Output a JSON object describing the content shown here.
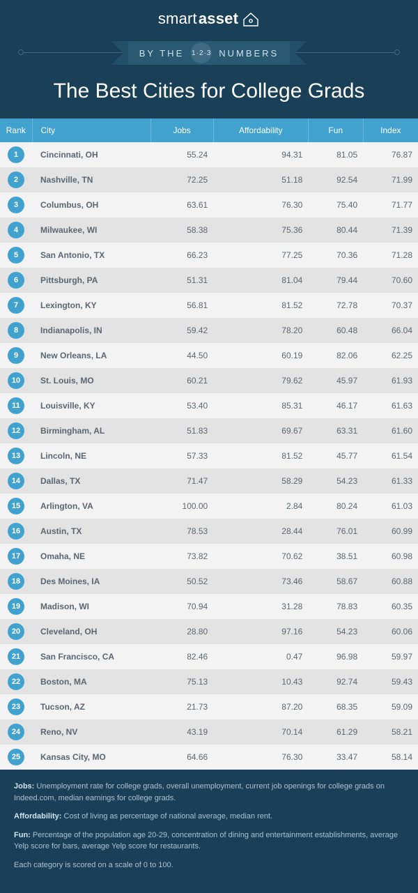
{
  "brand": {
    "part1": "smart",
    "part2": "asset"
  },
  "ribbon": {
    "left": "BY THE",
    "right": "NUMBERS",
    "badge": "1·2·3"
  },
  "title": "The Best Cities for College Grads",
  "columns": {
    "rank": "Rank",
    "city": "City",
    "jobs": "Jobs",
    "affordability": "Affordability",
    "fun": "Fun",
    "index": "Index"
  },
  "colors": {
    "page_bg": "#1a4057",
    "header_bg": "#41a2cf",
    "row_even": "#e3e3e3",
    "row_odd": "#f3f3f3",
    "badge_bg": "#41a2cf",
    "text": "#5c6670",
    "title": "#ffffff",
    "notes": "#a8c2d1"
  },
  "table": {
    "type": "table",
    "col_align": [
      "center",
      "left",
      "right",
      "right",
      "right",
      "right"
    ],
    "number_format": "2dp"
  },
  "rows": [
    {
      "rank": "1",
      "city": "Cincinnati, OH",
      "jobs": "55.24",
      "aff": "94.31",
      "fun": "81.05",
      "index": "76.87"
    },
    {
      "rank": "2",
      "city": "Nashville, TN",
      "jobs": "72.25",
      "aff": "51.18",
      "fun": "92.54",
      "index": "71.99"
    },
    {
      "rank": "3",
      "city": "Columbus, OH",
      "jobs": "63.61",
      "aff": "76.30",
      "fun": "75.40",
      "index": "71.77"
    },
    {
      "rank": "4",
      "city": "Milwaukee, WI",
      "jobs": "58.38",
      "aff": "75.36",
      "fun": "80.44",
      "index": "71.39"
    },
    {
      "rank": "5",
      "city": "San Antonio, TX",
      "jobs": "66.23",
      "aff": "77.25",
      "fun": "70.36",
      "index": "71.28"
    },
    {
      "rank": "6",
      "city": "Pittsburgh, PA",
      "jobs": "51.31",
      "aff": "81.04",
      "fun": "79.44",
      "index": "70.60"
    },
    {
      "rank": "7",
      "city": "Lexington, KY",
      "jobs": "56.81",
      "aff": "81.52",
      "fun": "72.78",
      "index": "70.37"
    },
    {
      "rank": "8",
      "city": "Indianapolis, IN",
      "jobs": "59.42",
      "aff": "78.20",
      "fun": "60.48",
      "index": "66.04"
    },
    {
      "rank": "9",
      "city": "New Orleans, LA",
      "jobs": "44.50",
      "aff": "60.19",
      "fun": "82.06",
      "index": "62.25"
    },
    {
      "rank": "10",
      "city": "St. Louis, MO",
      "jobs": "60.21",
      "aff": "79.62",
      "fun": "45.97",
      "index": "61.93"
    },
    {
      "rank": "11",
      "city": "Louisville, KY",
      "jobs": "53.40",
      "aff": "85.31",
      "fun": "46.17",
      "index": "61.63"
    },
    {
      "rank": "12",
      "city": "Birmingham, AL",
      "jobs": "51.83",
      "aff": "69.67",
      "fun": "63.31",
      "index": "61.60"
    },
    {
      "rank": "13",
      "city": "Lincoln, NE",
      "jobs": "57.33",
      "aff": "81.52",
      "fun": "45.77",
      "index": "61.54"
    },
    {
      "rank": "14",
      "city": "Dallas, TX",
      "jobs": "71.47",
      "aff": "58.29",
      "fun": "54.23",
      "index": "61.33"
    },
    {
      "rank": "15",
      "city": "Arlington, VA",
      "jobs": "100.00",
      "aff": "2.84",
      "fun": "80.24",
      "index": "61.03"
    },
    {
      "rank": "16",
      "city": "Austin, TX",
      "jobs": "78.53",
      "aff": "28.44",
      "fun": "76.01",
      "index": "60.99"
    },
    {
      "rank": "17",
      "city": "Omaha, NE",
      "jobs": "73.82",
      "aff": "70.62",
      "fun": "38.51",
      "index": "60.98"
    },
    {
      "rank": "18",
      "city": "Des Moines, IA",
      "jobs": "50.52",
      "aff": "73.46",
      "fun": "58.67",
      "index": "60.88"
    },
    {
      "rank": "19",
      "city": "Madison, WI",
      "jobs": "70.94",
      "aff": "31.28",
      "fun": "78.83",
      "index": "60.35"
    },
    {
      "rank": "20",
      "city": "Cleveland, OH",
      "jobs": "28.80",
      "aff": "97.16",
      "fun": "54.23",
      "index": "60.06"
    },
    {
      "rank": "21",
      "city": "San Francisco, CA",
      "jobs": "82.46",
      "aff": "0.47",
      "fun": "96.98",
      "index": "59.97"
    },
    {
      "rank": "22",
      "city": "Boston, MA",
      "jobs": "75.13",
      "aff": "10.43",
      "fun": "92.74",
      "index": "59.43"
    },
    {
      "rank": "23",
      "city": "Tucson, AZ",
      "jobs": "21.73",
      "aff": "87.20",
      "fun": "68.35",
      "index": "59.09"
    },
    {
      "rank": "24",
      "city": "Reno, NV",
      "jobs": "43.19",
      "aff": "70.14",
      "fun": "61.29",
      "index": "58.21"
    },
    {
      "rank": "25",
      "city": "Kansas City, MO",
      "jobs": "64.66",
      "aff": "76.30",
      "fun": "33.47",
      "index": "58.14"
    }
  ],
  "notes": {
    "jobs_label": "Jobs:",
    "jobs": " Unemployment rate for college grads, overall unemployment, current job openings for college grads on Indeed.com, median earnings for college grads.",
    "aff_label": "Affordability:",
    "aff": " Cost of living as percentage of national average, median rent.",
    "fun_label": "Fun:",
    "fun": " Percentage of the population age 20-29, concentration of dining and entertainment establishments, average Yelp score for bars, average Yelp score for restaurants.",
    "scale": "Each category is scored on a scale of 0 to 100."
  }
}
